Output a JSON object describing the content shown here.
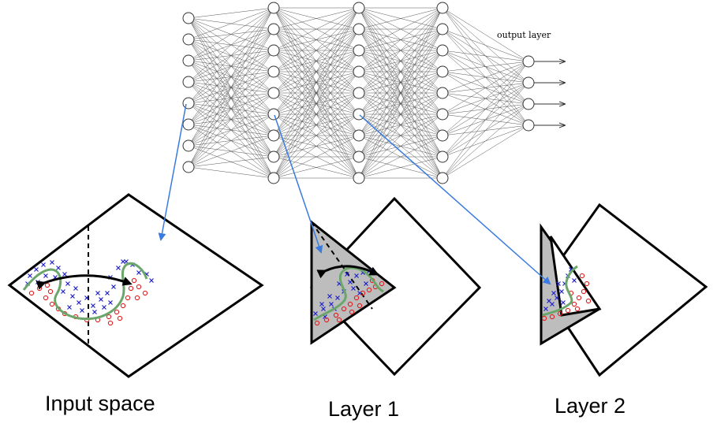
{
  "network": {
    "output_label": "output layer",
    "layer_sizes": [
      8,
      9,
      9,
      9,
      4
    ]
  },
  "panels": [
    {
      "id": "input",
      "caption": "Input space"
    },
    {
      "id": "layer1",
      "caption": "Layer 1"
    },
    {
      "id": "layer2",
      "caption": "Layer 2"
    }
  ],
  "colors": {
    "arrow": "#3a7be0",
    "curve": "#6aa66a",
    "class_x": "#2020d0",
    "class_o": "#e02020",
    "fold_fill": "#bdbdbd"
  }
}
